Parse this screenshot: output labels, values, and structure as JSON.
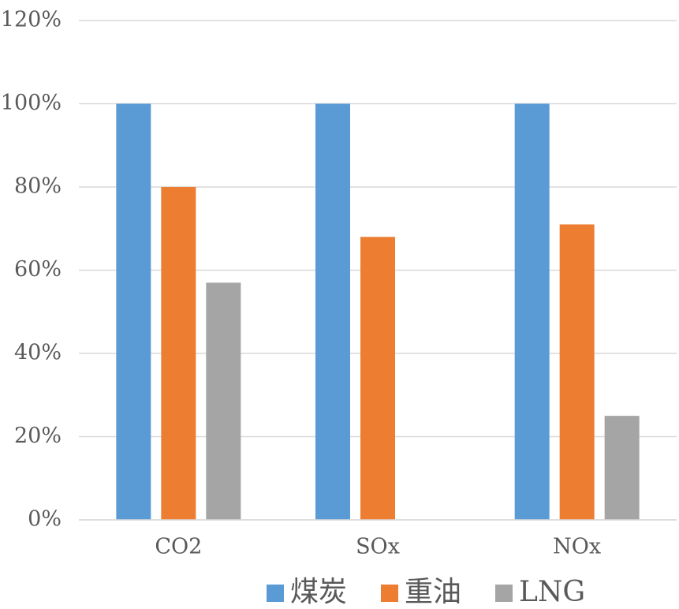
{
  "chart_data": {
    "type": "bar",
    "categories": [
      "CO2",
      "SOx",
      "NOx"
    ],
    "series": [
      {
        "name": "煤炭",
        "values": [
          100,
          100,
          100
        ],
        "color": "#5B9BD5"
      },
      {
        "name": "重油",
        "values": [
          80,
          68,
          71
        ],
        "color": "#ED7D31"
      },
      {
        "name": "LNG",
        "values": [
          57,
          0,
          25
        ],
        "color": "#A5A5A5"
      }
    ],
    "ylim": [
      0,
      120
    ],
    "yticks": [
      0,
      20,
      40,
      60,
      80,
      100,
      120
    ],
    "ytick_labels": [
      "0%",
      "20%",
      "40%",
      "60%",
      "80%",
      "100%",
      "120%"
    ],
    "grid": true,
    "legend_position": "bottom",
    "gridline_color": "#D9D9D9",
    "text_color": "#595959"
  }
}
